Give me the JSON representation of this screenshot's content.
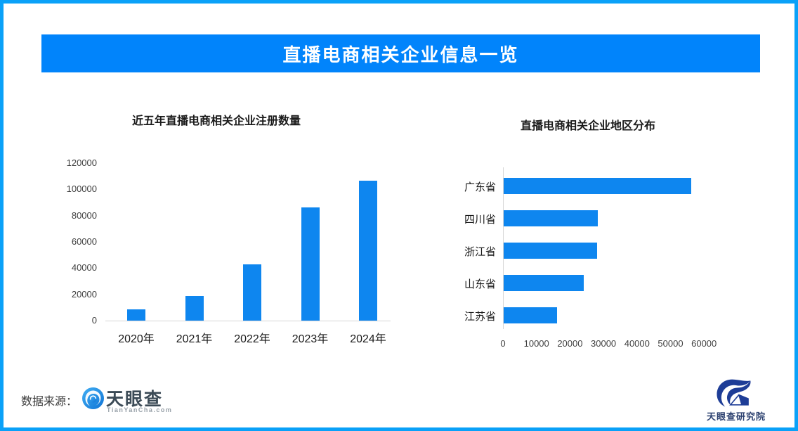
{
  "page": {
    "title": "直播电商相关企业信息一览",
    "source_label": "数据来源：",
    "colors": {
      "border": "#0AA1F8",
      "banner": "#0184FB",
      "bar": "#0E86EF",
      "axis_line": "#D6D6D6",
      "tick_text": "#404040",
      "title_text": "#1A1A1A"
    }
  },
  "branding": {
    "tianyancha": {
      "name": "天眼查",
      "domain": "TianYanCha.com",
      "logo": "tianyancha-eye-icon"
    },
    "institute": {
      "name": "天眼查研究院",
      "logo": "tianyancha-institute-eye-icon"
    }
  },
  "chart_data": [
    {
      "id": "registrations",
      "type": "bar",
      "orientation": "vertical",
      "title": "近五年直播电商相关企业注册数量",
      "categories": [
        "2020年",
        "2021年",
        "2022年",
        "2023年",
        "2024年"
      ],
      "values": [
        8700,
        19000,
        43000,
        86500,
        106500
      ],
      "ylabel": "",
      "xlabel": "",
      "ylim": [
        0,
        120000
      ],
      "yticks": [
        0,
        20000,
        40000,
        60000,
        80000,
        100000,
        120000
      ],
      "grid": false,
      "legend": false,
      "bar_color": "#0E86EF"
    },
    {
      "id": "regions",
      "type": "bar",
      "orientation": "horizontal",
      "title": "直播电商相关企业地区分布",
      "categories": [
        "广东省",
        "四川省",
        "浙江省",
        "山东省",
        "江苏省"
      ],
      "values": [
        56000,
        28000,
        27800,
        24000,
        16000
      ],
      "ylabel": "",
      "xlabel": "",
      "xlim": [
        0,
        65000
      ],
      "xticks": [
        0,
        10000,
        20000,
        30000,
        40000,
        50000,
        60000
      ],
      "grid": false,
      "legend": false,
      "bar_color": "#0E86EF"
    }
  ]
}
